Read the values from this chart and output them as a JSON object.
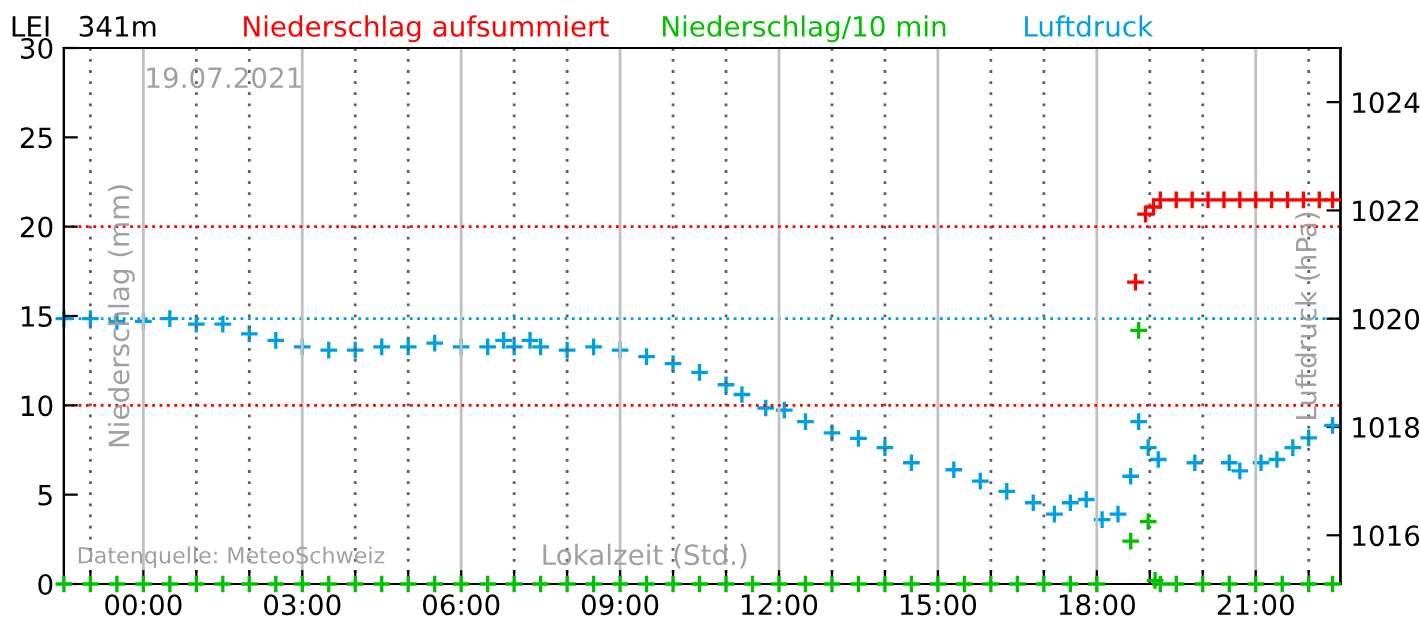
{
  "chart_data": {
    "type": "scatter",
    "title": "LEI   341m",
    "xlabel": "Lokalzeit (Std.)",
    "ylabel": "Niederschlag (mm)",
    "y2label": "Luftdruck (hPa)",
    "annotations": [
      "19.07.2021",
      "Datenquelle: MeteoSchweiz"
    ],
    "marker": "cross",
    "grid": "x",
    "legend": "top",
    "xlim": [
      -1.5,
      22.6
    ],
    "xticks": [
      {
        "value": -1,
        "label": null
      },
      {
        "value": 0,
        "label": "00:00"
      },
      {
        "value": 1,
        "label": null
      },
      {
        "value": 2,
        "label": null
      },
      {
        "value": 3,
        "label": "03:00"
      },
      {
        "value": 4,
        "label": null
      },
      {
        "value": 5,
        "label": null
      },
      {
        "value": 6,
        "label": "06:00"
      },
      {
        "value": 7,
        "label": null
      },
      {
        "value": 8,
        "label": null
      },
      {
        "value": 9,
        "label": "09:00"
      },
      {
        "value": 10,
        "label": null
      },
      {
        "value": 11,
        "label": null
      },
      {
        "value": 12,
        "label": "12:00"
      },
      {
        "value": 13,
        "label": null
      },
      {
        "value": 14,
        "label": null
      },
      {
        "value": 15,
        "label": "15:00"
      },
      {
        "value": 16,
        "label": null
      },
      {
        "value": 17,
        "label": null
      },
      {
        "value": 18,
        "label": "18:00"
      },
      {
        "value": 19,
        "label": null
      },
      {
        "value": 20,
        "label": null
      },
      {
        "value": 21,
        "label": "21:00"
      },
      {
        "value": 22,
        "label": null
      }
    ],
    "ylim": [
      0,
      30
    ],
    "yticks": [
      0,
      5,
      10,
      15,
      20,
      25,
      30
    ],
    "y2lim": [
      1015.1,
      1025.0
    ],
    "y2ticks": [
      1016,
      1018,
      1020,
      1022,
      1024
    ],
    "ref_lines": [
      {
        "axis": "y",
        "value": 10,
        "color": "#ff0000",
        "line_style": "dotted"
      },
      {
        "axis": "y",
        "value": 20,
        "color": "#ff0000",
        "line_style": "dotted"
      },
      {
        "axis": "y2",
        "value": 1020,
        "color": "#00a0e0",
        "line_style": "dotted"
      }
    ],
    "series": [
      {
        "name": "Niederschlag aufsummiert",
        "color": "#ff0000",
        "x": [
          18.73,
          18.92,
          19.07,
          19.2,
          19.5,
          19.8,
          20.1,
          20.4,
          20.7,
          21.0,
          21.3,
          21.6,
          21.9,
          22.2,
          22.45
        ],
        "values": [
          16.9,
          20.7,
          21.1,
          21.5,
          21.5,
          21.5,
          21.5,
          21.5,
          21.5,
          21.5,
          21.5,
          21.5,
          21.5,
          21.5,
          21.5
        ]
      },
      {
        "name": "Niederschlag/10 min",
        "color": "#00c000",
        "x": [
          -1.5,
          -1.0,
          -0.5,
          0.0,
          0.5,
          1.0,
          1.5,
          2.0,
          2.5,
          3.0,
          3.5,
          4.0,
          4.5,
          5.0,
          5.5,
          6.0,
          6.5,
          7.0,
          7.5,
          8.0,
          8.5,
          9.0,
          9.5,
          10.0,
          10.5,
          11.0,
          11.5,
          12.0,
          12.5,
          13.0,
          13.5,
          14.0,
          14.5,
          15.0,
          15.5,
          16.0,
          16.5,
          17.0,
          17.5,
          18.0,
          18.64,
          18.79,
          18.97,
          19.1,
          19.2,
          19.5,
          20.0,
          20.5,
          21.0,
          21.5,
          22.0,
          22.45
        ],
        "values": [
          0,
          0,
          0,
          0,
          0,
          0,
          0,
          0,
          0,
          0,
          0,
          0,
          0,
          0,
          0,
          0,
          0,
          0,
          0,
          0,
          0,
          0,
          0,
          0,
          0,
          0,
          0,
          0,
          0,
          0,
          0,
          0,
          0,
          0,
          0,
          0,
          0,
          0,
          0,
          0,
          2.4,
          14.2,
          3.5,
          0.2,
          0,
          0,
          0,
          0,
          0,
          0,
          0,
          0
        ]
      },
      {
        "name": "Luftdruck",
        "color": "#00a0e0",
        "axis": "y2",
        "x": [
          -1.5,
          -1.0,
          -0.5,
          0.0,
          0.5,
          1.0,
          1.5,
          2.0,
          2.5,
          3.0,
          3.5,
          4.0,
          4.5,
          5.0,
          5.5,
          6.0,
          6.5,
          6.8,
          7.0,
          7.3,
          7.5,
          8.0,
          8.5,
          9.0,
          9.5,
          10.0,
          10.5,
          11.0,
          11.3,
          11.75,
          12.1,
          12.5,
          13.0,
          13.5,
          14.0,
          14.5,
          15.3,
          15.8,
          16.3,
          16.8,
          17.2,
          17.5,
          17.8,
          18.1,
          18.4,
          18.64,
          18.79,
          18.97,
          19.16,
          19.85,
          20.5,
          20.7,
          21.1,
          21.4,
          21.7,
          22.0,
          22.45
        ],
        "values": [
          1020.0,
          1020.0,
          1019.95,
          1019.95,
          1020.0,
          1019.9,
          1019.9,
          1019.72,
          1019.6,
          1019.48,
          1019.42,
          1019.42,
          1019.48,
          1019.48,
          1019.55,
          1019.48,
          1019.48,
          1019.6,
          1019.48,
          1019.6,
          1019.48,
          1019.42,
          1019.48,
          1019.42,
          1019.3,
          1019.17,
          1019.01,
          1018.78,
          1018.6,
          1018.35,
          1018.31,
          1018.1,
          1017.89,
          1017.79,
          1017.62,
          1017.34,
          1017.21,
          1017.0,
          1016.81,
          1016.6,
          1016.39,
          1016.6,
          1016.66,
          1016.29,
          1016.39,
          1017.09,
          1018.1,
          1017.62,
          1017.4,
          1017.34,
          1017.34,
          1017.19,
          1017.34,
          1017.4,
          1017.62,
          1017.8,
          1018.03
        ]
      }
    ]
  }
}
